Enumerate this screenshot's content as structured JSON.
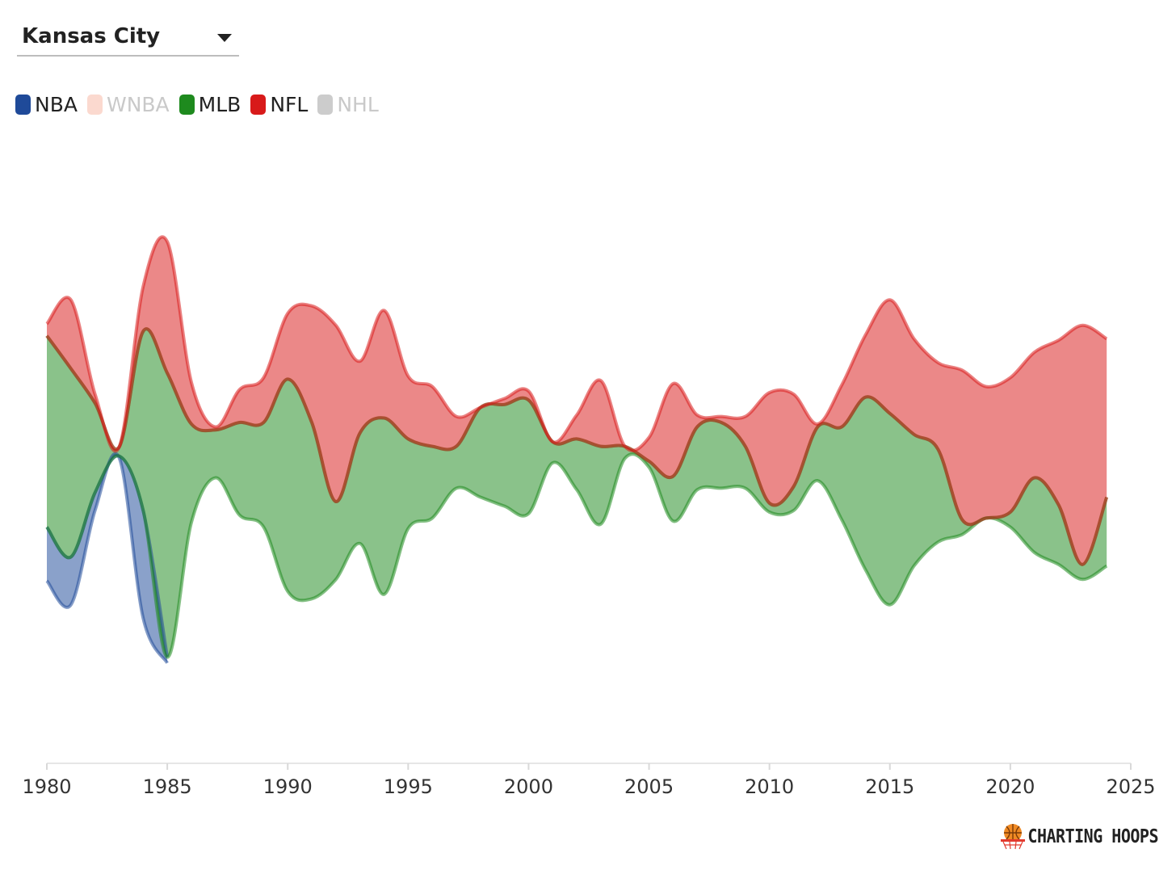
{
  "selector": {
    "selected": "Kansas City"
  },
  "legend": [
    {
      "key": "NBA",
      "label": "NBA",
      "color": "#1f4a99",
      "active": true
    },
    {
      "key": "WNBA",
      "label": "WNBA",
      "color": "#fbd9cf",
      "active": false
    },
    {
      "key": "MLB",
      "label": "MLB",
      "color": "#1e8a1e",
      "active": true
    },
    {
      "key": "NFL",
      "label": "NFL",
      "color": "#d81a1a",
      "active": true
    },
    {
      "key": "NHL",
      "label": "NHL",
      "color": "#cccccc",
      "active": false
    }
  ],
  "brand": {
    "name": "CHARTING HOOPS"
  },
  "chart_data": {
    "type": "area",
    "stacking": "streamgraph (centered)",
    "title": "",
    "xlabel": "",
    "ylabel": "",
    "xlim": [
      1980,
      2025
    ],
    "x_ticks": [
      1980,
      1985,
      1990,
      1995,
      2000,
      2005,
      2010,
      2015,
      2020,
      2025
    ],
    "units_note": "relative share units, no y-axis shown",
    "series": [
      {
        "name": "NBA",
        "color": "#1f4a99",
        "points": [
          [
            1980,
            1.8
          ],
          [
            1981,
            1.6
          ],
          [
            1982,
            0.6
          ],
          [
            1983,
            0.05
          ],
          [
            1984,
            3.6
          ],
          [
            1985,
            0.2
          ]
        ]
      },
      {
        "name": "MLB",
        "color": "#1e8a1e",
        "points": [
          [
            1980,
            6.4
          ],
          [
            1981,
            6.3
          ],
          [
            1982,
            3.0
          ],
          [
            1983,
            0.3
          ],
          [
            1984,
            6.0
          ],
          [
            1985,
            9.5
          ],
          [
            1986,
            3.3
          ],
          [
            1987,
            1.6
          ],
          [
            1988,
            3.1
          ],
          [
            1989,
            3.5
          ],
          [
            1990,
            7.1
          ],
          [
            1991,
            5.9
          ],
          [
            1992,
            2.6
          ],
          [
            1993,
            3.7
          ],
          [
            1994,
            5.9
          ],
          [
            1995,
            3.0
          ],
          [
            1996,
            2.4
          ],
          [
            1997,
            1.4
          ],
          [
            1998,
            3.0
          ],
          [
            1999,
            3.4
          ],
          [
            2000,
            3.8
          ],
          [
            2001,
            0.7
          ],
          [
            2002,
            1.7
          ],
          [
            2003,
            2.6
          ],
          [
            2004,
            0.4
          ],
          [
            2005,
            0.2
          ],
          [
            2006,
            1.5
          ],
          [
            2007,
            2.1
          ],
          [
            2008,
            2.2
          ],
          [
            2009,
            1.4
          ],
          [
            2010,
            0.3
          ],
          [
            2011,
            0.8
          ],
          [
            2012,
            1.8
          ],
          [
            2013,
            3.1
          ],
          [
            2014,
            5.8
          ],
          [
            2015,
            6.4
          ],
          [
            2016,
            4.4
          ],
          [
            2017,
            3.1
          ],
          [
            2018,
            0.5
          ],
          [
            2019,
            0.0
          ],
          [
            2020,
            0.5
          ],
          [
            2021,
            2.5
          ],
          [
            2022,
            2.0
          ],
          [
            2023,
            0.5
          ],
          [
            2024,
            2.3
          ]
        ]
      },
      {
        "name": "NFL",
        "color": "#d81a1a",
        "points": [
          [
            1980,
            0.4
          ],
          [
            1981,
            2.3
          ],
          [
            1982,
            0.3
          ],
          [
            1983,
            0.0
          ],
          [
            1984,
            1.5
          ],
          [
            1985,
            4.4
          ],
          [
            1986,
            1.4
          ],
          [
            1987,
            0.1
          ],
          [
            1988,
            1.1
          ],
          [
            1989,
            1.5
          ],
          [
            1990,
            2.2
          ],
          [
            1991,
            3.9
          ],
          [
            1992,
            5.9
          ],
          [
            1993,
            2.4
          ],
          [
            1994,
            3.6
          ],
          [
            1995,
            2.1
          ],
          [
            1996,
            2.0
          ],
          [
            1997,
            1.0
          ],
          [
            1998,
            0.0
          ],
          [
            1999,
            0.2
          ],
          [
            2000,
            0.3
          ],
          [
            2001,
            0.0
          ],
          [
            2002,
            0.8
          ],
          [
            2003,
            2.2
          ],
          [
            2004,
            0.0
          ],
          [
            2005,
            0.8
          ],
          [
            2006,
            3.1
          ],
          [
            2007,
            0.4
          ],
          [
            2008,
            0.2
          ],
          [
            2009,
            1.0
          ],
          [
            2010,
            3.7
          ],
          [
            2011,
            3.1
          ],
          [
            2012,
            0.1
          ],
          [
            2013,
            1.4
          ],
          [
            2014,
            2.1
          ],
          [
            2015,
            3.8
          ],
          [
            2016,
            3.2
          ],
          [
            2017,
            2.9
          ],
          [
            2018,
            5.0
          ],
          [
            2019,
            4.4
          ],
          [
            2020,
            4.5
          ],
          [
            2021,
            4.2
          ],
          [
            2022,
            5.5
          ],
          [
            2023,
            8.0
          ],
          [
            2024,
            5.3
          ]
        ]
      }
    ]
  }
}
